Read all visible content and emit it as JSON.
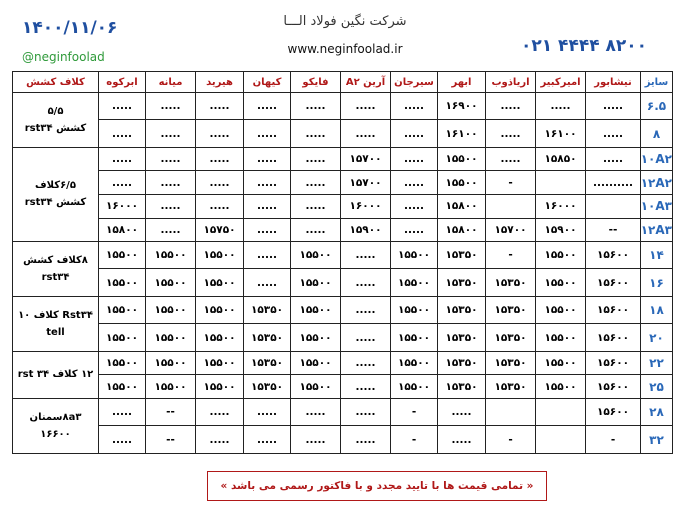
{
  "header": {
    "date": "۱۴۰۰/۱۱/۰۶",
    "instagram": "@neginfoolad",
    "company": "شرکت نگین فولاد الـــا",
    "website": "www.neginfoolad.ir",
    "phone": "۰۲۱ ۴۴۴۴ ۸۲۰۰"
  },
  "table": {
    "columns": [
      "سایز",
      "نیشابور",
      "امیرکبیر",
      "اریاذوب",
      "ابهر",
      "سیرجان",
      "آرین A۲",
      "فایکو",
      "کیهان",
      "هیرید",
      "میانه",
      "ابرکوه",
      "کلاف کشش"
    ],
    "rows": [
      [
        "۶.۵",
        ".....",
        ".....",
        ".....",
        "۱۶۹۰۰",
        ".....",
        ".....",
        ".....",
        ".....",
        ".....",
        ".....",
        "....."
      ],
      [
        "۸",
        ".....",
        "۱۶۱۰۰",
        ".....",
        "۱۶۱۰۰",
        ".....",
        ".....",
        ".....",
        ".....",
        ".....",
        ".....",
        "....."
      ],
      [
        "۱۰A۲",
        ".....",
        "۱۵۸۵۰",
        ".....",
        "۱۵۵۰۰",
        ".....",
        "۱۵۷۰۰",
        ".....",
        ".....",
        ".....",
        ".....",
        "....."
      ],
      [
        "۱۲A۲",
        "..........",
        null,
        "-",
        "۱۵۵۰۰",
        ".....",
        "۱۵۷۰۰",
        ".....",
        ".....",
        ".....",
        ".....",
        "....."
      ],
      [
        "۱۰A۳",
        null,
        "۱۶۰۰۰",
        null,
        "۱۵۸۰۰",
        ".....",
        "۱۶۰۰۰",
        ".....",
        ".....",
        ".....",
        ".....",
        "۱۶۰۰۰"
      ],
      [
        "۱۲A۳",
        "--",
        "۱۵۹۰۰",
        "۱۵۷۰۰",
        "۱۵۸۰۰",
        ".....",
        "۱۵۹۰۰",
        ".....",
        ".....",
        "۱۵۷۵۰",
        ".....",
        "۱۵۸۰۰"
      ],
      [
        "۱۴",
        "۱۵۶۰۰",
        "۱۵۵۰۰",
        "-",
        "۱۵۳۵۰",
        "۱۵۵۰۰",
        ".....",
        "۱۵۵۰۰",
        ".....",
        "۱۵۵۰۰",
        "۱۵۵۰۰",
        "۱۵۵۰۰"
      ],
      [
        "۱۶",
        "۱۵۶۰۰",
        "۱۵۵۰۰",
        "۱۵۳۵۰",
        "۱۵۳۵۰",
        "۱۵۵۰۰",
        ".....",
        "۱۵۵۰۰",
        ".....",
        "۱۵۵۰۰",
        "۱۵۵۰۰",
        "۱۵۵۰۰"
      ],
      [
        "۱۸",
        "۱۵۶۰۰",
        "۱۵۵۰۰",
        "۱۵۳۵۰",
        "۱۵۳۵۰",
        "۱۵۵۰۰",
        ".....",
        "۱۵۵۰۰",
        "۱۵۳۵۰",
        "۱۵۵۰۰",
        "۱۵۵۰۰",
        "۱۵۵۰۰"
      ],
      [
        "۲۰",
        "۱۵۶۰۰",
        "۱۵۵۰۰",
        "۱۵۳۵۰",
        "۱۵۳۵۰",
        "۱۵۵۰۰",
        ".....",
        "۱۵۵۰۰",
        "۱۵۳۵۰",
        "۱۵۵۰۰",
        "۱۵۵۰۰",
        "۱۵۵۰۰"
      ],
      [
        "۲۲",
        "۱۵۶۰۰",
        "۱۵۵۰۰",
        "۱۵۳۵۰",
        "۱۵۳۵۰",
        "۱۵۵۰۰",
        ".....",
        "۱۵۵۰۰",
        "۱۵۳۵۰",
        "۱۵۵۰۰",
        "۱۵۵۰۰",
        "۱۵۵۰۰"
      ],
      [
        "۲۵",
        "۱۵۶۰۰",
        "۱۵۵۰۰",
        "۱۵۳۵۰",
        "۱۵۳۵۰",
        "۱۵۵۰۰",
        ".....",
        "۱۵۵۰۰",
        "۱۵۳۵۰",
        "۱۵۵۰۰",
        "۱۵۵۰۰",
        "۱۵۵۰۰"
      ],
      [
        "۲۸",
        "۱۵۶۰۰",
        null,
        null,
        ".....",
        "-",
        ".....",
        ".....",
        ".....",
        ".....",
        "--",
        "....."
      ],
      [
        "۳۲",
        "-",
        null,
        "-",
        ".....",
        "-",
        ".....",
        ".....",
        ".....",
        ".....",
        "--",
        "....."
      ]
    ],
    "notes": [
      [
        "۵/۵",
        "کشش rst۳۴"
      ],
      [
        "۶/۵کلاف",
        "کشش rst۳۴"
      ],
      [
        "۸کلاف کشش",
        "rst۳۴"
      ],
      [
        "Rst۳۴ کلاف ۱۰",
        "tell"
      ],
      [
        "۱۲ کلاف ۳۴ rst"
      ],
      [
        "۸a۳سمنان",
        "۱۶۶۰۰"
      ]
    ]
  },
  "footer": "« تمامی قیمت ها با تایید مجدد و  با فاکتور رسمی می باشد »"
}
